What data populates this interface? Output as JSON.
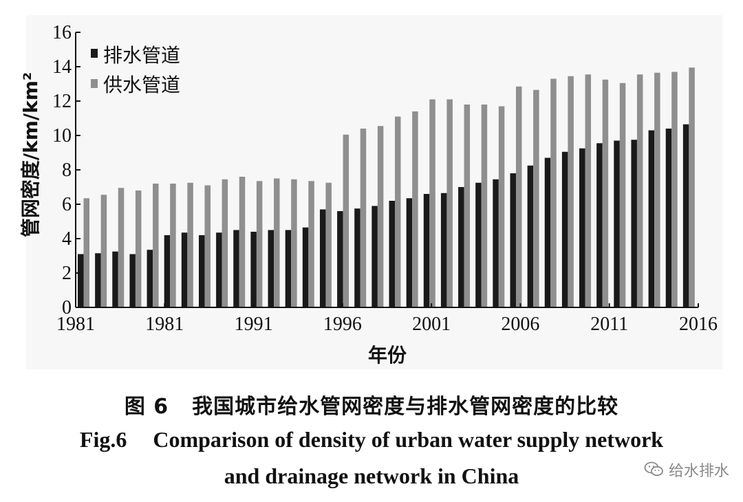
{
  "chart_data": {
    "type": "bar",
    "title": "",
    "xlabel": "年份",
    "ylabel": "管网密度/km/km²",
    "ylim": [
      0,
      16
    ],
    "yticks": [
      "0",
      "2",
      "4",
      "6",
      "8",
      "10",
      "12",
      "14",
      "16"
    ],
    "xticks": [
      "1981",
      "1981",
      "1991",
      "1996",
      "2001",
      "2006",
      "2011",
      "2016"
    ],
    "legend_position": "top-left",
    "grid": false,
    "series": [
      {
        "name": "排水管道",
        "color": "#1a1a1a",
        "values": [
          3.1,
          3.15,
          3.25,
          3.1,
          3.35,
          4.2,
          4.35,
          4.2,
          4.35,
          4.5,
          4.4,
          4.5,
          4.5,
          4.65,
          5.7,
          5.6,
          5.75,
          5.9,
          6.2,
          6.35,
          6.6,
          6.65,
          7.0,
          7.25,
          7.45,
          7.8,
          8.25,
          8.7,
          9.05,
          9.25,
          9.55,
          9.7,
          9.75,
          10.3,
          10.4,
          10.65
        ]
      },
      {
        "name": "供水管道",
        "color": "#8f8f8f",
        "values": [
          6.35,
          6.55,
          6.95,
          6.8,
          7.2,
          7.2,
          7.25,
          7.1,
          7.45,
          7.6,
          7.35,
          7.5,
          7.45,
          7.35,
          7.25,
          10.05,
          10.4,
          10.55,
          11.1,
          11.4,
          12.1,
          12.1,
          11.8,
          11.8,
          11.7,
          12.85,
          12.65,
          13.3,
          13.45,
          13.55,
          13.25,
          13.05,
          13.55,
          13.65,
          13.7,
          13.95
        ]
      }
    ]
  },
  "caption": {
    "cn_fig": "图 6",
    "cn_text": "我国城市给水管网密度与排水管网密度的比较",
    "en_fig": "Fig.6",
    "en_line1": "Comparison of density of urban water supply network",
    "en_line2": "and drainage network in China"
  },
  "watermark": {
    "text": "给水排水",
    "icon": "wechat-icon"
  }
}
